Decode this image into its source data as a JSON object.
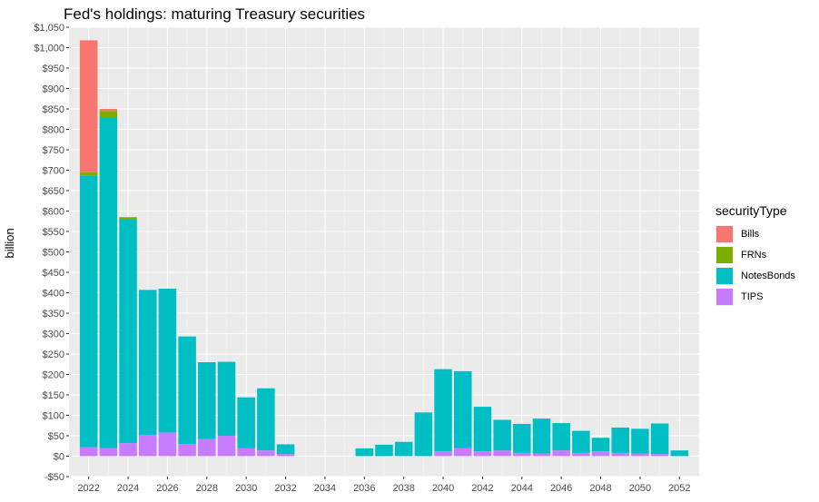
{
  "chart_data": {
    "type": "bar",
    "stacked": true,
    "title": "Fed's holdings: maturing Treasury securities",
    "xlabel": "",
    "ylabel": "billion",
    "legend_title": "securityType",
    "legend_position": "right",
    "grid": true,
    "ylim": [
      -50,
      1050
    ],
    "xlim": [
      2021,
      2053
    ],
    "y_ticks": [
      -50,
      0,
      50,
      100,
      150,
      200,
      250,
      300,
      350,
      400,
      450,
      500,
      550,
      600,
      650,
      700,
      750,
      800,
      850,
      900,
      950,
      1000,
      1050
    ],
    "y_tick_labels": [
      "-$50",
      "$0",
      "$50",
      "$100",
      "$150",
      "$200",
      "$250",
      "$300",
      "$350",
      "$400",
      "$450",
      "$500",
      "$550",
      "$600",
      "$650",
      "$700",
      "$750",
      "$800",
      "$850",
      "$900",
      "$950",
      "$1,000",
      "$1,050"
    ],
    "x_ticks": [
      2022,
      2024,
      2026,
      2028,
      2030,
      2032,
      2034,
      2036,
      2038,
      2040,
      2042,
      2044,
      2046,
      2048,
      2050,
      2052
    ],
    "x_tick_labels": [
      "2022",
      "2024",
      "2026",
      "2028",
      "2030",
      "2032",
      "2034",
      "2036",
      "2038",
      "2040",
      "2042",
      "2044",
      "2046",
      "2048",
      "2050",
      "2052"
    ],
    "x": [
      2022,
      2023,
      2024,
      2025,
      2026,
      2027,
      2028,
      2029,
      2030,
      2031,
      2032,
      2036,
      2037,
      2038,
      2039,
      2040,
      2041,
      2042,
      2043,
      2044,
      2045,
      2046,
      2047,
      2048,
      2049,
      2050,
      2051,
      2052
    ],
    "series": [
      {
        "name": "TIPS",
        "color": "#C77CFF",
        "values": [
          22,
          20,
          32,
          52,
          58,
          30,
          42,
          50,
          20,
          14,
          5,
          0,
          0,
          0,
          0,
          12,
          20,
          12,
          14,
          8,
          6,
          14,
          8,
          12,
          8,
          6,
          5,
          0
        ]
      },
      {
        "name": "NotesBonds",
        "color": "#00BFC4",
        "values": [
          665,
          810,
          548,
          355,
          352,
          263,
          188,
          181,
          124,
          152,
          24,
          19,
          28,
          35,
          107,
          201,
          188,
          109,
          75,
          71,
          86,
          67,
          54,
          33,
          62,
          61,
          75,
          14
        ]
      },
      {
        "name": "FRNs",
        "color": "#7CAE00",
        "values": [
          8,
          15,
          5,
          0,
          0,
          0,
          0,
          0,
          0,
          0,
          0,
          0,
          0,
          0,
          0,
          0,
          0,
          0,
          0,
          0,
          0,
          0,
          0,
          0,
          0,
          0,
          0,
          0
        ]
      },
      {
        "name": "Bills",
        "color": "#F8766D",
        "values": [
          323,
          5,
          0,
          0,
          0,
          0,
          0,
          0,
          0,
          0,
          0,
          0,
          0,
          0,
          0,
          0,
          0,
          0,
          0,
          0,
          0,
          0,
          0,
          0,
          0,
          0,
          0,
          0
        ]
      }
    ],
    "legend_order": [
      "Bills",
      "FRNs",
      "NotesBonds",
      "TIPS"
    ]
  }
}
